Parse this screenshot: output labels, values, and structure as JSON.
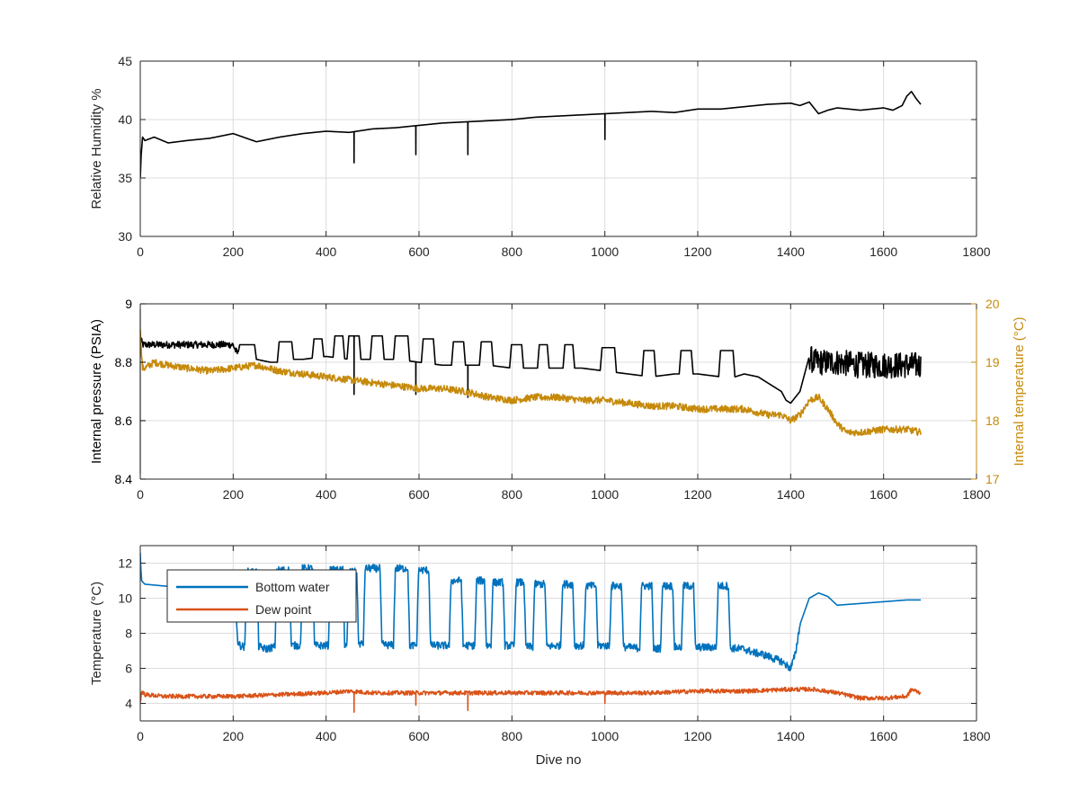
{
  "chart_data": [
    {
      "type": "line",
      "title": "",
      "xlabel": "",
      "ylabel": "Relative Humidity %",
      "xlim": [
        0,
        1800
      ],
      "ylim": [
        30,
        45
      ],
      "xticks": [
        "0",
        "200",
        "400",
        "600",
        "800",
        "1000",
        "1200",
        "1400",
        "1600",
        "1800"
      ],
      "yticks": [
        "30",
        "35",
        "40",
        "45"
      ],
      "grid": true,
      "series": [
        {
          "color": "#000000",
          "x": [
            0,
            2,
            5,
            10,
            30,
            60,
            100,
            150,
            200,
            250,
            300,
            350,
            400,
            450,
            500,
            550,
            600,
            650,
            700,
            750,
            800,
            850,
            900,
            950,
            1000,
            1050,
            1100,
            1150,
            1200,
            1250,
            1300,
            1350,
            1400,
            1420,
            1440,
            1460,
            1480,
            1500,
            1550,
            1600,
            1620,
            1640,
            1650,
            1660,
            1670,
            1680
          ],
          "y": [
            35.0,
            37.0,
            38.5,
            38.2,
            38.5,
            38.0,
            38.2,
            38.4,
            38.8,
            38.1,
            38.5,
            38.8,
            39.0,
            38.9,
            39.2,
            39.3,
            39.5,
            39.7,
            39.8,
            39.9,
            40.0,
            40.2,
            40.3,
            40.4,
            40.5,
            40.6,
            40.7,
            40.6,
            40.9,
            40.9,
            41.1,
            41.3,
            41.4,
            41.2,
            41.5,
            40.5,
            40.8,
            41.0,
            40.8,
            41.0,
            40.8,
            41.2,
            42.0,
            42.4,
            41.8,
            41.3
          ],
          "dips": [
            [
              460,
              36.3
            ],
            [
              593,
              37.0
            ],
            [
              705,
              37.0
            ],
            [
              1000,
              38.3
            ]
          ]
        }
      ]
    },
    {
      "type": "line",
      "title": "",
      "xlabel": "",
      "ylabel": "Internal pressure (PSIA)",
      "ylabel_right": "Internal temperature (°C)",
      "xlim": [
        0,
        1800
      ],
      "ylim": [
        8.4,
        9.0
      ],
      "ylim_right": [
        17,
        20
      ],
      "xticks": [
        "0",
        "200",
        "400",
        "600",
        "800",
        "1000",
        "1200",
        "1400",
        "1600",
        "1800"
      ],
      "yticks": [
        "8.4",
        "8.6",
        "8.8",
        "9"
      ],
      "yticks_right": [
        "17",
        "18",
        "19",
        "20"
      ],
      "grid": true,
      "series": [
        {
          "axis": "left",
          "color": "#000000",
          "x": [
            0,
            1,
            3,
            6,
            10,
            50,
            100,
            150,
            200,
            205,
            215,
            230,
            250,
            280,
            300,
            330,
            350,
            400,
            450,
            500,
            550,
            600,
            650,
            700,
            750,
            800,
            850,
            900,
            950,
            1000,
            1050,
            1100,
            1150,
            1200,
            1250,
            1280,
            1300,
            1330,
            1360,
            1380,
            1390,
            1400,
            1420,
            1440,
            1450,
            1500,
            1550,
            1600,
            1650,
            1680
          ],
          "y": [
            8.84,
            8.88,
            8.87,
            8.86,
            8.86,
            8.86,
            8.86,
            8.86,
            8.86,
            8.84,
            8.82,
            8.82,
            8.81,
            8.8,
            8.8,
            8.81,
            8.81,
            8.82,
            8.81,
            8.81,
            8.81,
            8.8,
            8.79,
            8.79,
            8.79,
            8.78,
            8.78,
            8.78,
            8.78,
            8.77,
            8.76,
            8.75,
            8.76,
            8.76,
            8.75,
            8.75,
            8.76,
            8.75,
            8.72,
            8.7,
            8.67,
            8.66,
            8.7,
            8.82,
            8.8,
            8.8,
            8.79,
            8.79,
            8.79,
            8.79
          ],
          "bumps": [
            [
              210,
              240,
              250,
              8.86
            ],
            [
              295,
              320,
              330,
              8.87
            ],
            [
              370,
              390,
              395,
              8.88
            ],
            [
              415,
              430,
              440,
              8.89
            ],
            [
              445,
              460,
              475,
              8.89
            ],
            [
              495,
              510,
              525,
              8.89
            ],
            [
              545,
              565,
              580,
              8.89
            ],
            [
              605,
              620,
              635,
              8.88
            ],
            [
              670,
              690,
              700,
              8.87
            ],
            [
              730,
              750,
              760,
              8.87
            ],
            [
              795,
              815,
              825,
              8.86
            ],
            [
              855,
              870,
              880,
              8.86
            ],
            [
              910,
              925,
              935,
              8.86
            ],
            [
              990,
              1010,
              1025,
              8.85
            ],
            [
              1080,
              1100,
              1110,
              8.84
            ],
            [
              1160,
              1175,
              1190,
              8.84
            ],
            [
              1245,
              1265,
              1280,
              8.84
            ]
          ],
          "dips": [
            [
              460,
              8.69
            ],
            [
              593,
              8.69
            ],
            [
              705,
              8.68
            ]
          ],
          "noise": [
            [
              0,
              210,
              0.012
            ],
            [
              1440,
              1680,
              0.045
            ]
          ]
        },
        {
          "axis": "right",
          "color": "#c68a0b",
          "x": [
            0,
            2,
            5,
            10,
            30,
            60,
            100,
            150,
            200,
            250,
            300,
            350,
            400,
            450,
            500,
            550,
            600,
            650,
            700,
            750,
            800,
            850,
            900,
            950,
            1000,
            1050,
            1100,
            1150,
            1200,
            1250,
            1300,
            1350,
            1380,
            1400,
            1420,
            1440,
            1460,
            1480,
            1500,
            1520,
            1550,
            1600,
            1650,
            1680
          ],
          "y": [
            19.6,
            19.2,
            18.9,
            18.9,
            19.0,
            18.95,
            18.9,
            18.85,
            18.9,
            18.95,
            18.85,
            18.8,
            18.75,
            18.7,
            18.65,
            18.6,
            18.55,
            18.55,
            18.5,
            18.4,
            18.35,
            18.4,
            18.4,
            18.35,
            18.35,
            18.3,
            18.25,
            18.25,
            18.2,
            18.2,
            18.2,
            18.1,
            18.1,
            18.0,
            18.1,
            18.35,
            18.4,
            18.2,
            17.95,
            17.8,
            17.8,
            17.85,
            17.85,
            17.8
          ],
          "noise": [
            [
              0,
              1680,
              0.06
            ]
          ]
        }
      ]
    },
    {
      "type": "line",
      "title": "",
      "xlabel": "Dive no",
      "ylabel": "Temperature (°C)",
      "xlim": [
        0,
        1800
      ],
      "ylim": [
        3,
        13
      ],
      "xticks": [
        "0",
        "200",
        "400",
        "600",
        "800",
        "1000",
        "1200",
        "1400",
        "1600",
        "1800"
      ],
      "yticks": [
        "4",
        "6",
        "8",
        "10",
        "12"
      ],
      "grid": true,
      "legend": "top-left",
      "series": [
        {
          "name": "Bottom water",
          "color": "#0072bd",
          "x": [
            0,
            1,
            3,
            6,
            10,
            50,
            100,
            150,
            190,
            205,
            210,
            215,
            225,
            250,
            270,
            300,
            350,
            400,
            450,
            500,
            550,
            600,
            650,
            700,
            750,
            800,
            850,
            900,
            950,
            1000,
            1050,
            1100,
            1150,
            1200,
            1250,
            1300,
            1320,
            1340,
            1360,
            1380,
            1395,
            1400,
            1410,
            1420,
            1440,
            1460,
            1480,
            1500,
            1550,
            1600,
            1650,
            1680
          ],
          "y": [
            12.6,
            11.8,
            11.0,
            10.9,
            10.8,
            10.7,
            10.6,
            10.6,
            10.3,
            9.5,
            7.5,
            7.3,
            7.2,
            7.3,
            7.1,
            7.3,
            7.3,
            7.3,
            7.4,
            7.4,
            7.3,
            7.3,
            7.3,
            7.3,
            7.3,
            7.3,
            7.2,
            7.3,
            7.3,
            7.3,
            7.2,
            7.1,
            7.2,
            7.2,
            7.2,
            7.1,
            6.9,
            6.8,
            6.6,
            6.4,
            6.1,
            6.0,
            6.8,
            8.5,
            10.0,
            10.3,
            10.1,
            9.6,
            9.7,
            9.8,
            9.9,
            9.9
          ],
          "bumps": [
            [
              225,
              240,
              255,
              11.5
            ],
            [
              290,
              305,
              325,
              11.6
            ],
            [
              345,
              360,
              375,
              11.7
            ],
            [
              405,
              420,
              440,
              11.6
            ],
            [
              445,
              460,
              470,
              11.5
            ],
            [
              480,
              500,
              520,
              11.7
            ],
            [
              545,
              560,
              580,
              11.7
            ],
            [
              595,
              610,
              625,
              11.6
            ],
            [
              665,
              680,
              695,
              11.0
            ],
            [
              720,
              735,
              745,
              11.0
            ],
            [
              755,
              770,
              785,
              10.9
            ],
            [
              805,
              820,
              830,
              10.9
            ],
            [
              845,
              860,
              875,
              10.8
            ],
            [
              905,
              920,
              935,
              10.8
            ],
            [
              955,
              970,
              985,
              10.7
            ],
            [
              1010,
              1025,
              1040,
              10.7
            ],
            [
              1075,
              1090,
              1105,
              10.7
            ],
            [
              1120,
              1135,
              1150,
              10.7
            ],
            [
              1165,
              1180,
              1195,
              10.7
            ],
            [
              1240,
              1255,
              1270,
              10.7
            ]
          ],
          "noise": [
            [
              210,
              1420,
              0.22
            ]
          ]
        },
        {
          "name": "Dew point",
          "color": "#d95319",
          "x": [
            0,
            3,
            10,
            50,
            100,
            200,
            300,
            400,
            450,
            500,
            600,
            700,
            800,
            900,
            1000,
            1100,
            1200,
            1300,
            1400,
            1450,
            1500,
            1550,
            1600,
            1650,
            1660,
            1680
          ],
          "y": [
            4.0,
            4.7,
            4.5,
            4.4,
            4.4,
            4.4,
            4.5,
            4.6,
            4.7,
            4.6,
            4.6,
            4.6,
            4.6,
            4.6,
            4.6,
            4.6,
            4.7,
            4.7,
            4.8,
            4.8,
            4.6,
            4.3,
            4.3,
            4.4,
            4.8,
            4.6
          ],
          "dips": [
            [
              460,
              3.5
            ],
            [
              593,
              3.9
            ],
            [
              705,
              3.6
            ],
            [
              1000,
              4.0
            ]
          ],
          "noise": [
            [
              0,
              1680,
              0.12
            ]
          ]
        }
      ]
    }
  ]
}
